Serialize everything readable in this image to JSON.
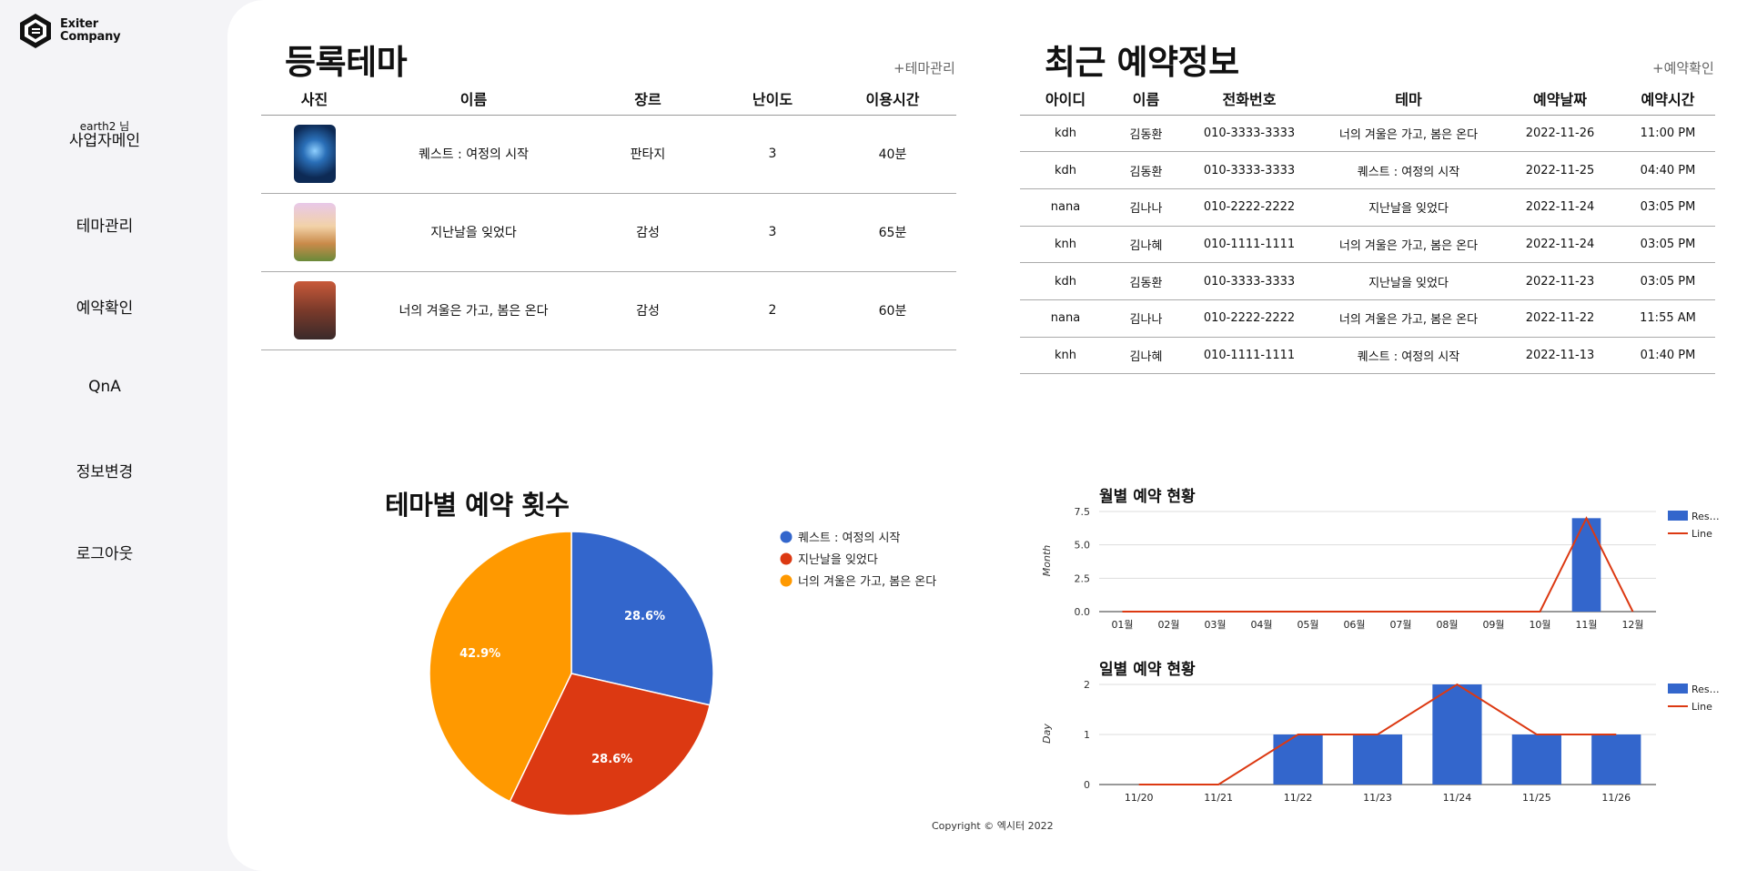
{
  "brand": {
    "line1": "Exiter",
    "line2": "Company"
  },
  "sidebar": {
    "greeting": "earth2 님",
    "main_label": "사업자메인",
    "items": [
      {
        "label": "테마관리"
      },
      {
        "label": "예약확인"
      },
      {
        "label": "QnA"
      },
      {
        "label": "정보변경"
      },
      {
        "label": "로그아웃"
      }
    ]
  },
  "themes_section": {
    "title": "등록테마",
    "link": "+테마관리",
    "headers": [
      "사진",
      "이름",
      "장르",
      "난이도",
      "이용시간"
    ],
    "rows": [
      {
        "name": "퀘스트 : 여정의 시작",
        "genre": "판타지",
        "level": "3",
        "time": "40분"
      },
      {
        "name": "지난날을 잊었다",
        "genre": "감성",
        "level": "3",
        "time": "65분"
      },
      {
        "name": "너의 겨울은 가고, 봄은 온다",
        "genre": "감성",
        "level": "2",
        "time": "60분"
      }
    ]
  },
  "reservations_section": {
    "title": "최근 예약정보",
    "link": "+예약확인",
    "headers": [
      "아이디",
      "이름",
      "전화번호",
      "테마",
      "예약날짜",
      "예약시간"
    ],
    "rows": [
      [
        "kdh",
        "김동환",
        "010-3333-3333",
        "너의 겨울은 가고, 봄은 온다",
        "2022-11-26",
        "11:00 PM"
      ],
      [
        "kdh",
        "김동환",
        "010-3333-3333",
        "퀘스트 : 여정의 시작",
        "2022-11-25",
        "04:40 PM"
      ],
      [
        "nana",
        "김나나",
        "010-2222-2222",
        "지난날을 잊었다",
        "2022-11-24",
        "03:05 PM"
      ],
      [
        "knh",
        "김나혜",
        "010-1111-1111",
        "너의 겨울은 가고, 봄은 온다",
        "2022-11-24",
        "03:05 PM"
      ],
      [
        "kdh",
        "김동환",
        "010-3333-3333",
        "지난날을 잊었다",
        "2022-11-23",
        "03:05 PM"
      ],
      [
        "nana",
        "김나나",
        "010-2222-2222",
        "너의 겨울은 가고, 봄은 온다",
        "2022-11-22",
        "11:55 AM"
      ],
      [
        "knh",
        "김나혜",
        "010-1111-1111",
        "퀘스트 : 여정의 시작",
        "2022-11-13",
        "01:40 PM"
      ]
    ]
  },
  "chart_data": [
    {
      "type": "pie",
      "title": "테마별 예약 횟수",
      "categories": [
        "퀘스트 : 여정의 시작",
        "지난날을 잊었다",
        "너의 겨울은 가고, 봄은 온다"
      ],
      "values": [
        2,
        2,
        3
      ],
      "labels": [
        "28.6%",
        "28.6%",
        "42.9%"
      ],
      "colors": [
        "#3366cc",
        "#dc3912",
        "#ff9900"
      ],
      "legend": "right"
    },
    {
      "type": "bar",
      "title": "월별 예약 현황",
      "xlabel": "",
      "ylabel": "Month",
      "categories": [
        "01월",
        "02월",
        "03월",
        "04월",
        "05월",
        "06월",
        "07월",
        "08월",
        "09월",
        "10월",
        "11월",
        "12월"
      ],
      "ylim": [
        0,
        7.5
      ],
      "yticks": [
        "0.0",
        "2.5",
        "5.0",
        "7.5"
      ],
      "series": [
        {
          "name": "Res…",
          "type": "bar",
          "color": "#3366cc",
          "values": [
            0,
            0,
            0,
            0,
            0,
            0,
            0,
            0,
            0,
            0,
            7,
            0
          ]
        },
        {
          "name": "Line",
          "type": "line",
          "color": "#dc3912",
          "values": [
            0,
            0,
            0,
            0,
            0,
            0,
            0,
            0,
            0,
            0,
            7,
            0
          ]
        }
      ],
      "legend": "right"
    },
    {
      "type": "bar",
      "title": "일별 예약 현황",
      "xlabel": "",
      "ylabel": "Day",
      "categories": [
        "11/20",
        "11/21",
        "11/22",
        "11/23",
        "11/24",
        "11/25",
        "11/26"
      ],
      "ylim": [
        0,
        2
      ],
      "yticks": [
        "0",
        "1",
        "2"
      ],
      "series": [
        {
          "name": "Res…",
          "type": "bar",
          "color": "#3366cc",
          "values": [
            0,
            0,
            1,
            1,
            2,
            1,
            1
          ]
        },
        {
          "name": "Line",
          "type": "line",
          "color": "#dc3912",
          "values": [
            0,
            0,
            1,
            1,
            2,
            1,
            1
          ]
        }
      ],
      "legend": "right"
    }
  ],
  "footer": {
    "copyright": "Copyright © 엑시터 2022"
  }
}
